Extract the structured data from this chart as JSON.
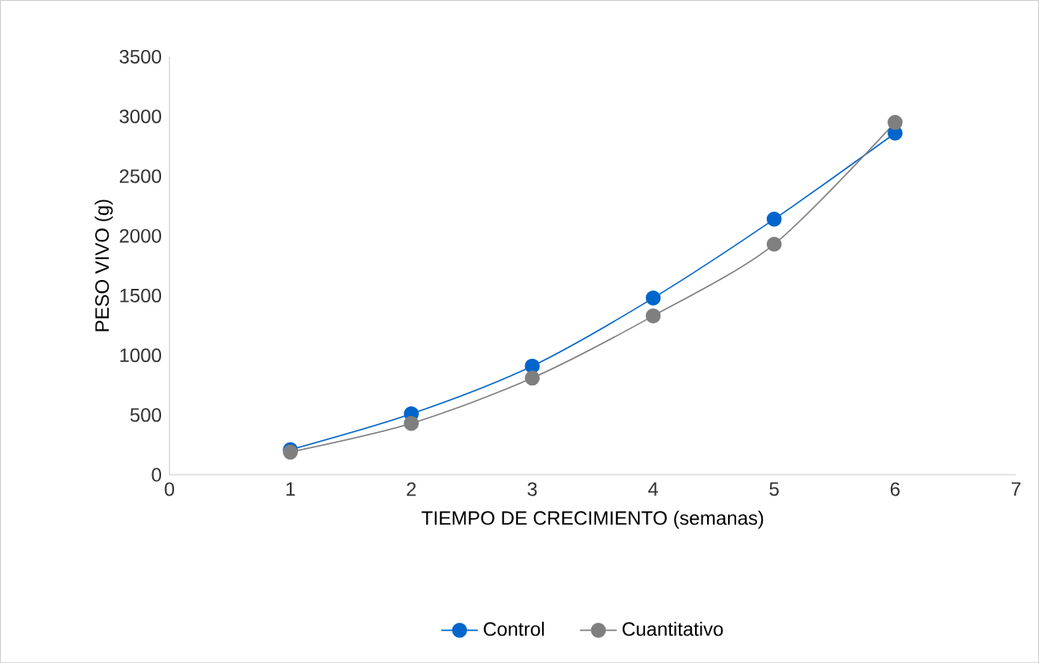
{
  "chart_data": {
    "type": "line",
    "xlabel": "TIEMPO DE CRECIMIENTO (semanas)",
    "ylabel": "PESO VIVO (g)",
    "x": [
      1,
      2,
      3,
      4,
      5,
      6
    ],
    "series": [
      {
        "name": "Control",
        "color": "#0066cc",
        "values": [
          210,
          510,
          910,
          1480,
          2140,
          2860
        ]
      },
      {
        "name": "Cuantitativo",
        "color": "#7f7f7f",
        "values": [
          190,
          430,
          810,
          1330,
          1930,
          2950
        ]
      }
    ],
    "xlim": [
      0,
      7
    ],
    "xticks": [
      0,
      1,
      2,
      3,
      4,
      5,
      6,
      7
    ],
    "ylim": [
      0,
      3500
    ],
    "yticks": [
      0,
      500,
      1000,
      1500,
      2000,
      2500,
      3000,
      3500
    ],
    "grid": false,
    "legend": "bottom",
    "marker": "circle",
    "line_style": "solid"
  }
}
